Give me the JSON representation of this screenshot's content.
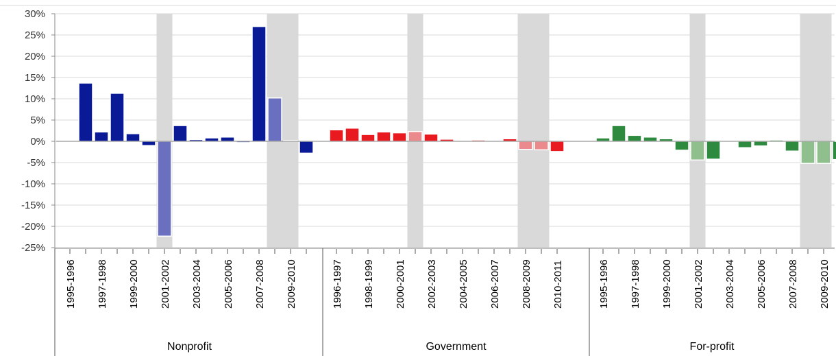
{
  "chart_data": {
    "type": "bar",
    "ylim": [
      -0.25,
      0.3
    ],
    "yticks": [
      "30%",
      "25%",
      "20%",
      "15%",
      "10%",
      "5%",
      "0%",
      "-5%",
      "-10%",
      "-15%",
      "-20%",
      "-25%"
    ],
    "grid": true,
    "groups": [
      {
        "name": "Nonprofit",
        "color": "#0a1a96",
        "shaded_color": "#6a6fc0",
        "periods": [
          "1995-1996",
          "1996-1997",
          "1997-1998",
          "1998-1999",
          "1999-2000",
          "2000-2001",
          "2001-2002",
          "2002-2003",
          "2003-2004",
          "2004-2005",
          "2005-2006",
          "2006-2007",
          "2007-2008",
          "2008-2009",
          "2009-2010",
          "2010-2011"
        ],
        "tick_labels": [
          "1995-1996",
          "1997-1998",
          "1999-2000",
          "2001-2002",
          "2003-2004",
          "2005-2006",
          "2007-2008",
          "2009-2010"
        ],
        "values": [
          0,
          0.137,
          0.022,
          0.113,
          0.018,
          -0.01,
          -0.223,
          0.037,
          0.004,
          0.008,
          0.01,
          -0.003,
          0.27,
          0.102,
          0.002,
          -0.028
        ],
        "shaded_periods": [
          "2001-2002",
          "2008-2009",
          "2009-2010"
        ]
      },
      {
        "name": "Government",
        "color": "#e8191f",
        "shaded_color": "#eb8a8c",
        "periods": [
          "1996-1997",
          "1997-1998",
          "1998-1999",
          "1999-2000",
          "2000-2001",
          "2001-2002",
          "2002-2003",
          "2003-2004",
          "2004-2005",
          "2005-2006",
          "2006-2007",
          "2007-2008",
          "2008-2009",
          "2009-2010",
          "2010-2011"
        ],
        "tick_labels": [
          "1996-1997",
          "1998-1999",
          "2000-2001",
          "2002-2003",
          "2004-2005",
          "2006-2007",
          "2008-2009",
          "2010-2011"
        ],
        "values": [
          0.027,
          0.031,
          0.016,
          0.022,
          0.02,
          0.023,
          0.017,
          0.005,
          0.0,
          0.003,
          0.002,
          0.006,
          -0.019,
          -0.02,
          -0.024
        ],
        "shaded_periods": [
          "2001-2002",
          "2008-2009",
          "2009-2010"
        ]
      },
      {
        "name": "For-profit",
        "color": "#2e8a3e",
        "shaded_color": "#8fbf8c",
        "periods": [
          "1995-1996",
          "1996-1997",
          "1997-1998",
          "1998-1999",
          "1999-2000",
          "2000-2001",
          "2001-2002",
          "2002-2003",
          "2003-2004",
          "2004-2005",
          "2005-2006",
          "2006-2007",
          "2007-2008",
          "2008-2009",
          "2009-2010",
          "2010-2011"
        ],
        "tick_labels": [
          "1995-1996",
          "1997-1998",
          "1999-2000",
          "2001-2002",
          "2003-2004",
          "2005-2006",
          "2007-2008",
          "2009-2010"
        ],
        "values": [
          0.008,
          0.037,
          0.014,
          0.01,
          0.006,
          -0.021,
          -0.044,
          -0.042,
          0.0,
          -0.015,
          -0.011,
          0.003,
          -0.023,
          -0.052,
          -0.052,
          -0.043
        ],
        "shaded_periods": [
          "2001-2002",
          "2008-2009",
          "2009-2010"
        ]
      }
    ]
  }
}
